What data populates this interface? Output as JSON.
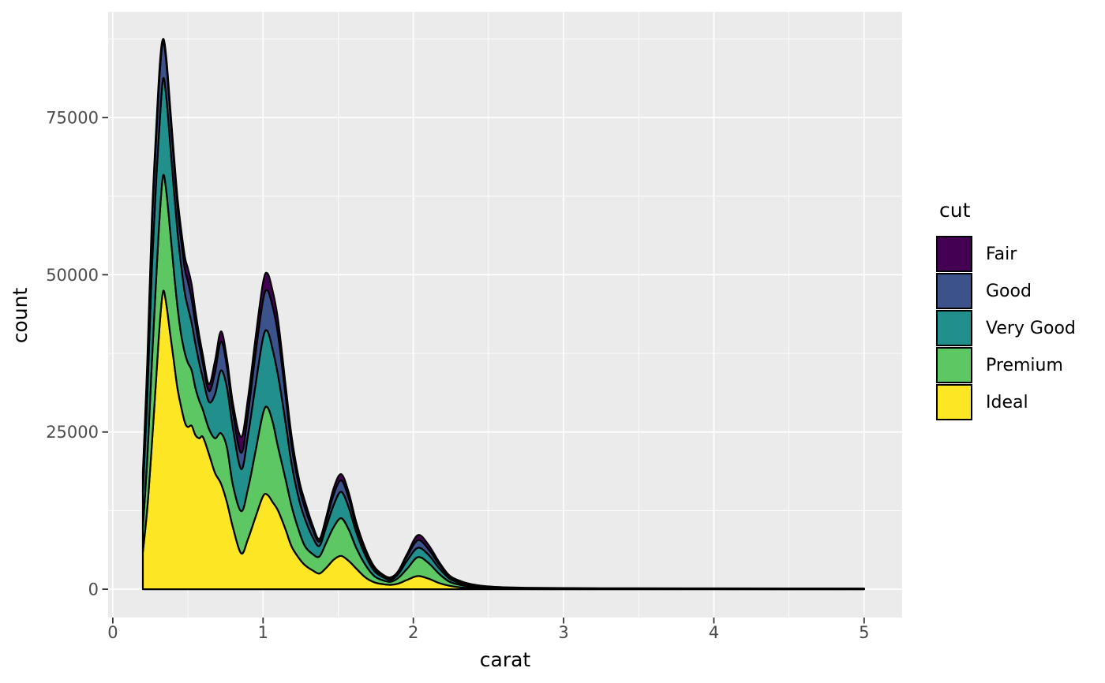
{
  "chart_data": {
    "type": "area",
    "subtype": "stacked-density",
    "title": "",
    "xlabel": "carat",
    "ylabel": "count",
    "xlim": [
      -0.031,
      5.253
    ],
    "ylim": [
      -4500,
      91800
    ],
    "x_ticks": [
      0,
      1,
      2,
      3,
      4,
      5
    ],
    "x_tick_labels": [
      "0",
      "1",
      "2",
      "3",
      "4",
      "5"
    ],
    "x_minor": [
      0.5,
      1.5,
      2.5,
      3.5,
      4.5
    ],
    "y_ticks": [
      0,
      25000,
      50000,
      75000
    ],
    "y_tick_labels": [
      "0",
      "25000",
      "50000",
      "75000"
    ],
    "y_minor": [
      12500,
      37500,
      62500,
      87500
    ],
    "grid": "on",
    "legend": {
      "title": "cut",
      "position": "right"
    },
    "colors": {
      "panel_bg": "#EBEBEB",
      "grid": "#FFFFFF",
      "outline": "#000000",
      "tick_mark": "#333333",
      "tick_label": "#4D4D4D",
      "axis_title": "#000000"
    },
    "stack_order_bottom_to_top": [
      "Ideal",
      "Premium",
      "Very Good",
      "Good",
      "Fair"
    ],
    "x": [
      0.2,
      0.23,
      0.26,
      0.29,
      0.315,
      0.335,
      0.355,
      0.38,
      0.405,
      0.43,
      0.455,
      0.48,
      0.5,
      0.525,
      0.55,
      0.575,
      0.6,
      0.64,
      0.68,
      0.72,
      0.76,
      0.8,
      0.855,
      0.9,
      0.95,
      1.0,
      1.03,
      1.065,
      1.1,
      1.15,
      1.19,
      1.24,
      1.28,
      1.33,
      1.375,
      1.42,
      1.47,
      1.52,
      1.57,
      1.62,
      1.68,
      1.74,
      1.8,
      1.85,
      1.9,
      1.96,
      2.03,
      2.1,
      2.17,
      2.24,
      2.32,
      2.41,
      2.5,
      2.6,
      2.75,
      3.0,
      3.25,
      3.5,
      4.0,
      4.5,
      5.0
    ],
    "series": [
      {
        "name": "Fair",
        "color": "#440154",
        "values": [
          700,
          1000,
          1300,
          1300,
          1200,
          500,
          800,
          900,
          1100,
          1400,
          1700,
          2000,
          2100,
          2300,
          2000,
          1600,
          1400,
          1100,
          1800,
          1600,
          1300,
          1500,
          2500,
          2400,
          2500,
          2800,
          2700,
          2500,
          2300,
          1700,
          1500,
          1100,
          1100,
          700,
          400,
          600,
          1000,
          1000,
          900,
          600,
          400,
          300,
          200,
          200,
          200,
          400,
          800,
          700,
          400,
          200,
          170,
          110,
          70,
          60,
          50,
          45,
          40,
          35,
          35,
          35,
          30
        ]
      },
      {
        "name": "Good",
        "color": "#3B528B",
        "values": [
          2300,
          4500,
          6500,
          7000,
          7500,
          5800,
          5500,
          5000,
          4500,
          4000,
          4000,
          3800,
          4100,
          3800,
          3200,
          2800,
          2300,
          1700,
          3500,
          4600,
          3300,
          2500,
          2600,
          3500,
          5000,
          6000,
          6500,
          6800,
          6500,
          4300,
          2900,
          2100,
          1700,
          1200,
          700,
          1000,
          1700,
          1800,
          1500,
          1000,
          700,
          400,
          200,
          200,
          300,
          700,
          1200,
          900,
          600,
          300,
          180,
          110,
          80,
          60,
          45,
          35,
          30,
          30,
          25,
          25,
          25
        ]
      },
      {
        "name": "Very Good",
        "color": "#21908C",
        "values": [
          5700,
          10000,
          15000,
          15500,
          15000,
          15400,
          15000,
          14000,
          13000,
          12000,
          11000,
          9500,
          8800,
          7500,
          7000,
          6000,
          5000,
          4300,
          7000,
          10000,
          9500,
          9000,
          6700,
          8500,
          10500,
          12000,
          12100,
          11500,
          11400,
          9000,
          6700,
          5000,
          4300,
          2700,
          1700,
          2500,
          3500,
          4200,
          3500,
          2500,
          1500,
          800,
          500,
          300,
          600,
          1300,
          1500,
          1300,
          900,
          500,
          250,
          150,
          100,
          70,
          55,
          45,
          40,
          35,
          35,
          30,
          25
        ]
      },
      {
        "name": "Premium",
        "color": "#5DC863",
        "values": [
          3900,
          8000,
          13000,
          16000,
          17500,
          18400,
          18000,
          16500,
          14500,
          13000,
          11500,
          11000,
          10200,
          8800,
          7500,
          6000,
          4300,
          4000,
          5500,
          8000,
          8700,
          6700,
          6700,
          8000,
          10500,
          13200,
          13900,
          12700,
          10100,
          8000,
          6400,
          4300,
          3000,
          2600,
          2700,
          4000,
          5200,
          6000,
          5000,
          3300,
          2000,
          1000,
          600,
          500,
          900,
          1800,
          3000,
          2500,
          1500,
          650,
          370,
          200,
          130,
          90,
          65,
          55,
          48,
          45,
          37,
          34,
          30
        ]
      },
      {
        "name": "Ideal",
        "color": "#FDE725",
        "values": [
          5900,
          13000,
          23000,
          34000,
          43000,
          47400,
          45500,
          41000,
          36500,
          32000,
          29000,
          26500,
          25800,
          26000,
          24500,
          24000,
          24200,
          21500,
          18500,
          16800,
          13800,
          9800,
          5700,
          8000,
          11500,
          14800,
          15000,
          13800,
          12500,
          9500,
          6800,
          4900,
          3800,
          3000,
          2500,
          3400,
          4700,
          5300,
          4500,
          3300,
          1900,
          1100,
          800,
          700,
          900,
          1500,
          2100,
          1700,
          1000,
          550,
          280,
          130,
          70,
          40,
          25,
          15,
          12,
          10,
          8,
          6,
          5
        ]
      }
    ]
  }
}
